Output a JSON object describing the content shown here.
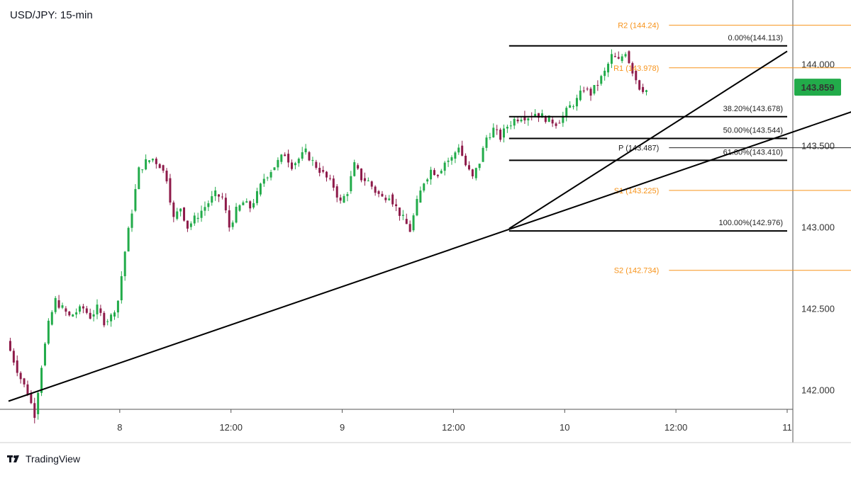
{
  "title": "USD/JPY: 15-min",
  "brand": {
    "name": "TradingView",
    "logo_icon": "tradingview-logo-icon"
  },
  "current_price": {
    "label": "143.859",
    "value": 143.859,
    "color": "#22ab4a"
  },
  "colors": {
    "up": "#22ab4a",
    "down": "#8e1b4a",
    "pivot": "#f7931a",
    "line": "#000000"
  },
  "chart_data": {
    "type": "candlestick",
    "symbol": "USD/JPY",
    "interval": "15-min",
    "y_axis": {
      "ticks": [
        "142.000",
        "142.500",
        "143.000",
        "143.500",
        "144.000"
      ],
      "ylim": [
        141.88,
        144.36
      ]
    },
    "x_axis": {
      "ticks": [
        "8",
        "12:00",
        "9",
        "12:00",
        "10",
        "12:00",
        "11"
      ],
      "tick_index": [
        16,
        32,
        48,
        64,
        80,
        96,
        112
      ],
      "x_range_index": [
        0,
        112
      ]
    },
    "candle_anchors": [
      [
        0,
        142.3
      ],
      [
        1,
        142.18
      ],
      [
        2,
        142.07
      ],
      [
        3,
        141.98
      ],
      [
        4,
        141.85
      ],
      [
        5,
        142.15
      ],
      [
        6,
        142.4
      ],
      [
        7,
        142.55
      ],
      [
        8,
        142.5
      ],
      [
        9,
        142.45
      ],
      [
        10,
        142.48
      ],
      [
        11,
        142.5
      ],
      [
        12,
        142.45
      ],
      [
        13,
        142.5
      ],
      [
        14,
        142.42
      ],
      [
        15,
        142.45
      ],
      [
        16,
        142.55
      ],
      [
        17,
        142.85
      ],
      [
        18,
        143.1
      ],
      [
        19,
        143.35
      ],
      [
        20,
        143.4
      ],
      [
        21,
        143.42
      ],
      [
        22,
        143.38
      ],
      [
        23,
        143.3
      ],
      [
        24,
        143.05
      ],
      [
        25,
        143.12
      ],
      [
        26,
        143.0
      ],
      [
        27,
        143.05
      ],
      [
        28,
        143.1
      ],
      [
        29,
        143.15
      ],
      [
        30,
        143.2
      ],
      [
        31,
        143.18
      ],
      [
        32,
        143.0
      ],
      [
        33,
        143.1
      ],
      [
        34,
        143.15
      ],
      [
        35,
        143.12
      ],
      [
        36,
        143.2
      ],
      [
        37,
        143.3
      ],
      [
        38,
        143.35
      ],
      [
        39,
        143.4
      ],
      [
        40,
        143.45
      ],
      [
        41,
        143.38
      ],
      [
        42,
        143.42
      ],
      [
        43,
        143.46
      ],
      [
        44,
        143.4
      ],
      [
        45,
        143.35
      ],
      [
        46,
        143.3
      ],
      [
        47,
        143.25
      ],
      [
        48,
        143.15
      ],
      [
        49,
        143.22
      ],
      [
        50,
        143.38
      ],
      [
        51,
        143.3
      ],
      [
        52,
        143.28
      ],
      [
        53,
        143.22
      ],
      [
        54,
        143.18
      ],
      [
        55,
        143.2
      ],
      [
        56,
        143.12
      ],
      [
        57,
        143.05
      ],
      [
        58,
        142.98
      ],
      [
        59,
        143.15
      ],
      [
        60,
        143.28
      ],
      [
        61,
        143.35
      ],
      [
        62,
        143.33
      ],
      [
        63,
        143.4
      ],
      [
        64,
        143.42
      ],
      [
        65,
        143.5
      ],
      [
        66,
        143.38
      ],
      [
        67,
        143.3
      ],
      [
        68,
        143.4
      ],
      [
        69,
        143.55
      ],
      [
        70,
        143.6
      ],
      [
        71,
        143.55
      ],
      [
        72,
        143.62
      ],
      [
        73,
        143.66
      ],
      [
        74,
        143.68
      ],
      [
        75,
        143.68
      ],
      [
        76,
        143.7
      ],
      [
        77,
        143.68
      ],
      [
        78,
        143.66
      ],
      [
        79,
        143.64
      ],
      [
        80,
        143.68
      ],
      [
        81,
        143.74
      ],
      [
        82,
        143.78
      ],
      [
        83,
        143.85
      ],
      [
        84,
        143.82
      ],
      [
        85,
        143.88
      ],
      [
        86,
        143.95
      ],
      [
        87,
        144.05
      ],
      [
        88,
        144.02
      ],
      [
        89,
        144.08
      ],
      [
        90,
        143.96
      ],
      [
        91,
        143.86
      ],
      [
        92,
        143.84
      ]
    ],
    "fibonacci": {
      "anchor_index": [
        72,
        112
      ],
      "levels": [
        {
          "label": "0.00%(144.113)",
          "value": 144.113
        },
        {
          "label": "38.20%(143.678)",
          "value": 143.678
        },
        {
          "label": "50.00%(143.544)",
          "value": 143.544
        },
        {
          "label": "61.80%(143.410)",
          "value": 143.41
        },
        {
          "label": "100.00%(142.976)",
          "value": 142.976
        }
      ]
    },
    "pivots": {
      "x_range_index": [
        95,
        133
      ],
      "levels": [
        {
          "label": "R2 (144.24)",
          "value": 144.24,
          "kind": "resistance"
        },
        {
          "label": "R1 (143.978)",
          "value": 143.978,
          "kind": "resistance"
        },
        {
          "label": "P (143.487)",
          "value": 143.487,
          "kind": "pivot"
        },
        {
          "label": "S1 (143.225)",
          "value": 143.225,
          "kind": "support"
        },
        {
          "label": "S2 (142.734)",
          "value": 142.734,
          "kind": "support"
        }
      ]
    },
    "trendlines": [
      {
        "name": "long-trendline",
        "from": [
          0,
          141.93
        ],
        "to": [
          133,
          143.88
        ]
      },
      {
        "name": "steep-trendline",
        "from": [
          72,
          142.99
        ],
        "to": [
          112,
          144.08
        ]
      }
    ]
  }
}
